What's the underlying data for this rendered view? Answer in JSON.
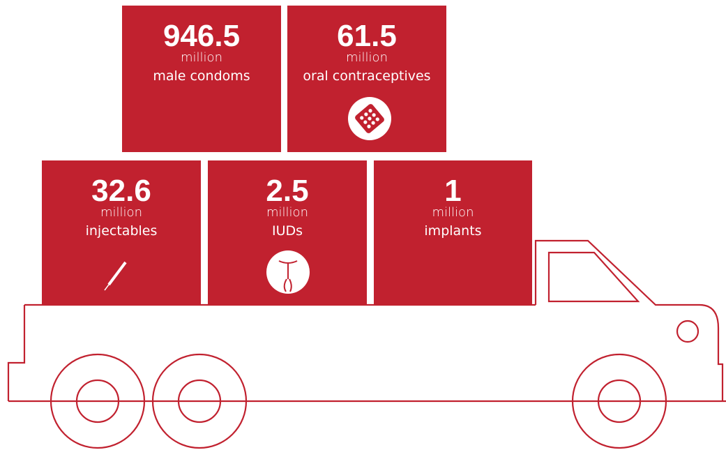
{
  "boxes": [
    {
      "value": 946.5,
      "unit": "million",
      "label": "male condoms"
    },
    {
      "value": 61.5,
      "unit": "million",
      "label": "oral contraceptives"
    },
    {
      "value": 32.6,
      "unit": "million",
      "label": "injectables"
    },
    {
      "value": 2.5,
      "unit": "million",
      "label": "IUDs"
    },
    {
      "value": 1,
      "unit": "million",
      "label": "implants"
    }
  ]
}
